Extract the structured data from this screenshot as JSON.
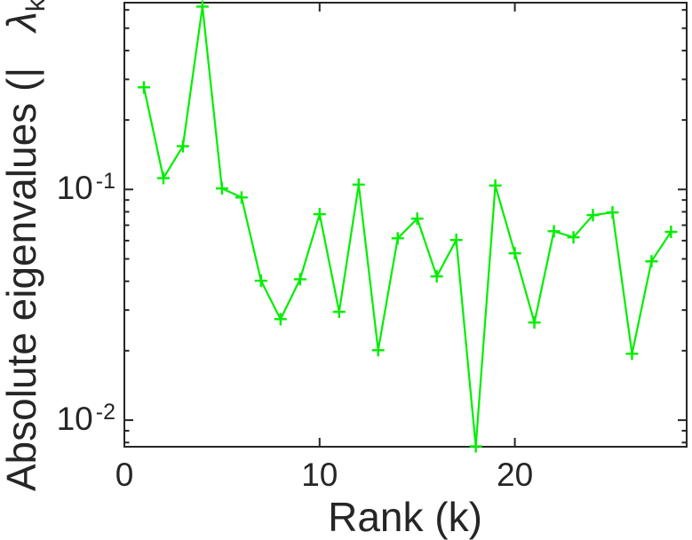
{
  "chart_data": {
    "type": "line",
    "title": "",
    "xlabel": "Rank (k)",
    "ylabel": "Absolute eigenvalues (|λk|)",
    "ylabel_parts": {
      "prefix": "Absolute eigenvalues (|",
      "lambda": "λ",
      "subscript": "k",
      "suffix": "|)"
    },
    "series": [
      {
        "name": "absolute-eigenvalues",
        "x": [
          1,
          2,
          3,
          4,
          5,
          6,
          7,
          8,
          9,
          10,
          11,
          12,
          13,
          14,
          15,
          16,
          17,
          18,
          19,
          20,
          21,
          22,
          23,
          24,
          25,
          26,
          27,
          28
        ],
        "y": [
          0.277,
          0.112,
          0.154,
          0.62,
          0.101,
          0.0923,
          0.0402,
          0.0274,
          0.0408,
          0.0781,
          0.0295,
          0.105,
          0.0201,
          0.0614,
          0.0747,
          0.042,
          0.0604,
          0.0077,
          0.104,
          0.0529,
          0.0265,
          0.0659,
          0.062,
          0.0774,
          0.0795,
          0.0194,
          0.0488,
          0.0655
        ]
      }
    ],
    "marker": "+",
    "line_color": "#00ee00",
    "axis_color": "#262626",
    "background": "#ffffff",
    "xscale": "linear",
    "yscale": "log",
    "xlim": [
      0,
      28.8
    ],
    "ylim": [
      0.00767,
      0.645
    ],
    "grid": false,
    "legend": null,
    "x_ticks": [
      {
        "value": 0,
        "label": "0"
      },
      {
        "value": 10,
        "label": "10"
      },
      {
        "value": 20,
        "label": "20"
      }
    ],
    "y_major_ticks": [
      {
        "value": 0.1,
        "base": "10",
        "exp": "-1"
      },
      {
        "value": 0.01,
        "base": "10",
        "exp": "-2"
      }
    ],
    "y_minor_ticks": [
      0.008,
      0.009,
      0.02,
      0.03,
      0.04,
      0.05,
      0.06,
      0.07,
      0.08,
      0.09,
      0.2,
      0.3,
      0.4,
      0.5,
      0.6
    ]
  }
}
